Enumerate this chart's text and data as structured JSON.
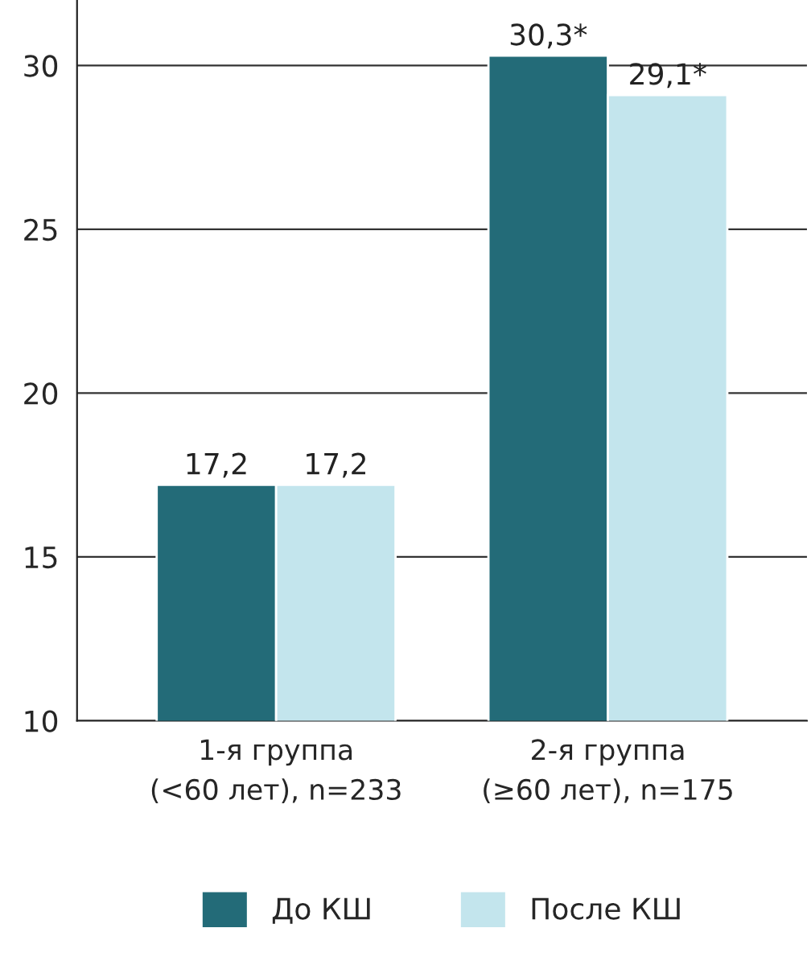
{
  "chart_data": {
    "type": "bar",
    "categories": [
      "1-я группа\n(<60 лет), n=233",
      "2-я группа\n(≥60 лет), n=175"
    ],
    "series": [
      {
        "name": "До КШ",
        "color": "#236b78",
        "values": [
          17.2,
          30.3
        ],
        "value_labels": [
          "17,2",
          "30,3*"
        ]
      },
      {
        "name": "После КШ",
        "color": "#c3e5ed",
        "values": [
          17.2,
          29.1
        ],
        "value_labels": [
          "17,2",
          "29,1*"
        ]
      }
    ],
    "ylim": [
      10,
      32
    ],
    "yticks": [
      10,
      15,
      20,
      25,
      30
    ],
    "grid": "y",
    "legend": "bottom"
  }
}
